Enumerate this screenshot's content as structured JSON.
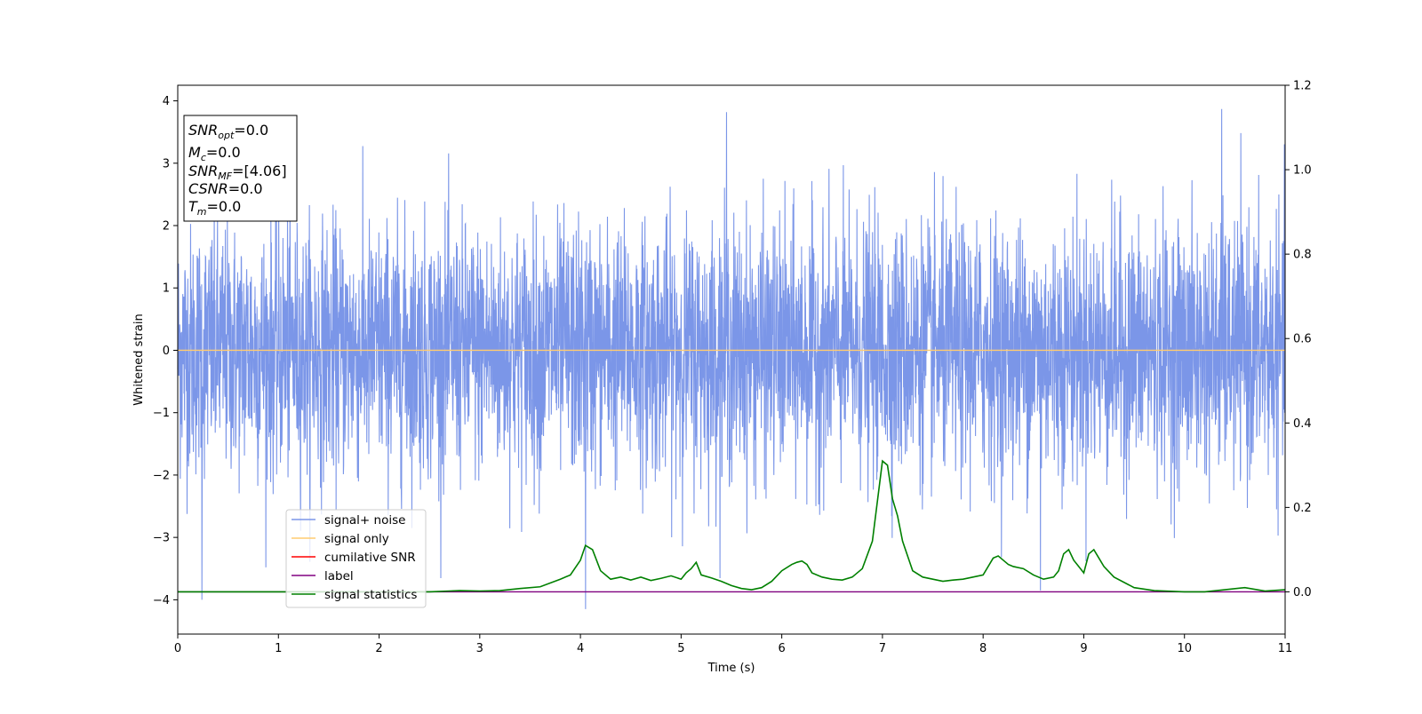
{
  "chart_data": {
    "type": "line",
    "xlabel": "Time (s)",
    "ylabel": "Whitened strain",
    "xlim": [
      0,
      11
    ],
    "ylim": [
      -4.55,
      4.25
    ],
    "y2lim": [
      -0.1,
      1.2
    ],
    "x_ticks": [
      "0",
      "1",
      "2",
      "3",
      "4",
      "5",
      "6",
      "7",
      "8",
      "9",
      "10",
      "11"
    ],
    "y_ticks": [
      "−4",
      "−3",
      "−2",
      "−1",
      "0",
      "1",
      "2",
      "3",
      "4"
    ],
    "y2_ticks": [
      "0.0",
      "0.2",
      "0.4",
      "0.6",
      "0.8",
      "1.0",
      "1.2"
    ],
    "grid": false,
    "legend_position": "lower-left",
    "info_box": [
      {
        "label": "SNR",
        "sub": "opt",
        "value": "=0.0"
      },
      {
        "label": "M",
        "sub": "c",
        "value": "=0.0"
      },
      {
        "label": "SNR",
        "sub": "MF",
        "value": "=[4.06]"
      },
      {
        "label": "CSNR",
        "sub": "",
        "value": "=0.0"
      },
      {
        "label": "T",
        "sub": "m",
        "value": "=0.0"
      }
    ],
    "series": [
      {
        "name": "signal+ noise",
        "axis": "left",
        "color": "#7b96e8",
        "kind": "noise",
        "mean": 0,
        "approx_range": [
          -4.15,
          3.87
        ],
        "notable_peaks": [
          [
            4.05,
            -4.15
          ],
          [
            10.37,
            3.87
          ],
          [
            5.45,
            3.82
          ],
          [
            0.24,
            -4.0
          ],
          [
            8.57,
            -3.85
          ]
        ]
      },
      {
        "name": "signal only",
        "axis": "left",
        "color": "#ffcc70",
        "x": [
          0,
          11
        ],
        "y": [
          0,
          0
        ]
      },
      {
        "name": "cumilative SNR",
        "axis": "left",
        "color": "#ff0000",
        "x": [],
        "y": []
      },
      {
        "name": "label",
        "axis": "right",
        "color": "#800080",
        "x": [
          0,
          11
        ],
        "y": [
          0,
          0
        ]
      },
      {
        "name": "signal statistics",
        "axis": "right",
        "color": "#008000",
        "x": [
          0,
          0.5,
          1,
          1.5,
          2,
          2.5,
          2.8,
          3,
          3.2,
          3.4,
          3.6,
          3.8,
          3.9,
          4.0,
          4.05,
          4.12,
          4.2,
          4.3,
          4.4,
          4.5,
          4.6,
          4.7,
          4.8,
          4.9,
          5.0,
          5.05,
          5.1,
          5.15,
          5.2,
          5.3,
          5.4,
          5.5,
          5.6,
          5.7,
          5.8,
          5.9,
          6.0,
          6.1,
          6.15,
          6.2,
          6.25,
          6.3,
          6.4,
          6.5,
          6.6,
          6.7,
          6.8,
          6.9,
          7.0,
          7.05,
          7.1,
          7.15,
          7.2,
          7.3,
          7.4,
          7.5,
          7.6,
          7.7,
          7.8,
          7.9,
          8.0,
          8.1,
          8.15,
          8.2,
          8.25,
          8.3,
          8.4,
          8.5,
          8.6,
          8.7,
          8.75,
          8.8,
          8.85,
          8.9,
          9.0,
          9.05,
          9.1,
          9.15,
          9.2,
          9.3,
          9.5,
          9.7,
          10.0,
          10.2,
          10.4,
          10.6,
          10.8,
          11.0
        ],
        "y": [
          0.0,
          0.0,
          0.0,
          0.0,
          0.0,
          0.0,
          0.003,
          0.002,
          0.003,
          0.008,
          0.012,
          0.03,
          0.04,
          0.075,
          0.11,
          0.1,
          0.05,
          0.03,
          0.035,
          0.028,
          0.035,
          0.027,
          0.032,
          0.038,
          0.03,
          0.045,
          0.055,
          0.07,
          0.04,
          0.033,
          0.025,
          0.015,
          0.008,
          0.005,
          0.01,
          0.025,
          0.05,
          0.065,
          0.07,
          0.073,
          0.065,
          0.045,
          0.035,
          0.03,
          0.028,
          0.035,
          0.055,
          0.12,
          0.31,
          0.3,
          0.22,
          0.18,
          0.12,
          0.05,
          0.035,
          0.03,
          0.025,
          0.028,
          0.03,
          0.035,
          0.04,
          0.08,
          0.085,
          0.075,
          0.065,
          0.06,
          0.055,
          0.04,
          0.03,
          0.035,
          0.05,
          0.09,
          0.1,
          0.075,
          0.045,
          0.09,
          0.1,
          0.08,
          0.06,
          0.035,
          0.01,
          0.003,
          0.0,
          0.0,
          0.005,
          0.01,
          0.002,
          0.005
        ]
      }
    ]
  }
}
